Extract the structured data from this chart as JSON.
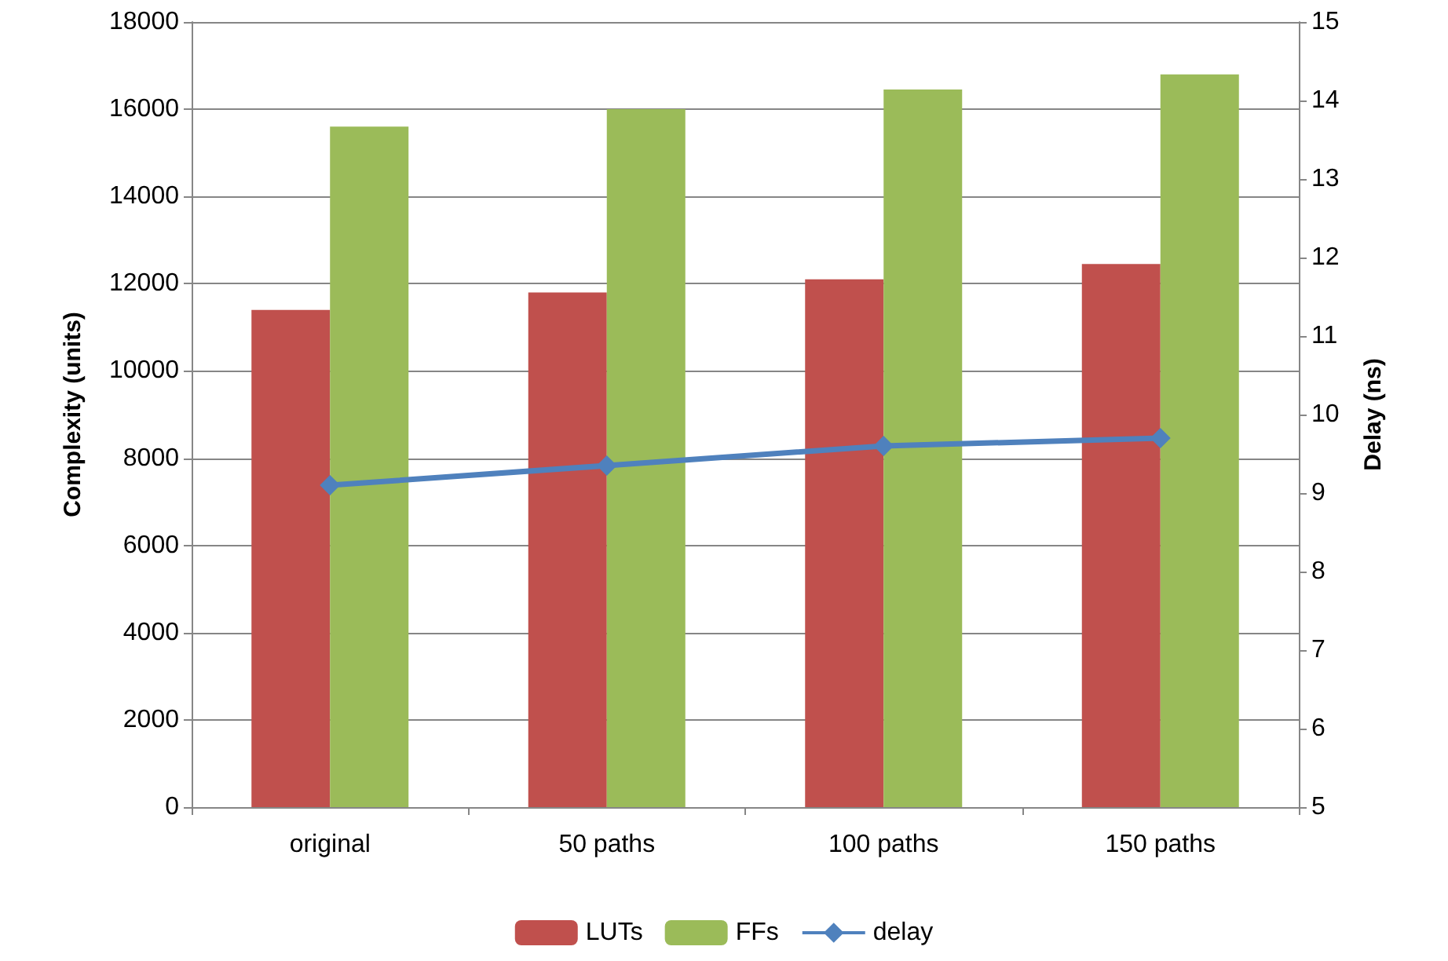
{
  "chart_data": {
    "type": "bar",
    "categories": [
      "original",
      "50 paths",
      "100 paths",
      "150 paths"
    ],
    "series": [
      {
        "name": "LUTs",
        "color": "#c0504d",
        "values": [
          11400,
          11800,
          12100,
          12450
        ]
      },
      {
        "name": "FFs",
        "color": "#9bbb59",
        "values": [
          15600,
          16000,
          16450,
          16800
        ]
      },
      {
        "name": "delay",
        "type": "line",
        "axis": "y2",
        "color": "#4f81bd",
        "marker": "diamond",
        "values": [
          9.1,
          9.35,
          9.6,
          9.7
        ]
      }
    ],
    "ylabel": "Complexity (units)",
    "y2label": "Delay (ns)",
    "ylim": [
      0,
      18000
    ],
    "yticks": [
      0,
      2000,
      4000,
      6000,
      8000,
      10000,
      12000,
      14000,
      16000,
      18000
    ],
    "y2lim": [
      5,
      15
    ],
    "y2ticks": [
      5,
      6,
      7,
      8,
      9,
      10,
      11,
      12,
      13,
      14,
      15
    ],
    "grid": "y",
    "legend": "bottom"
  }
}
